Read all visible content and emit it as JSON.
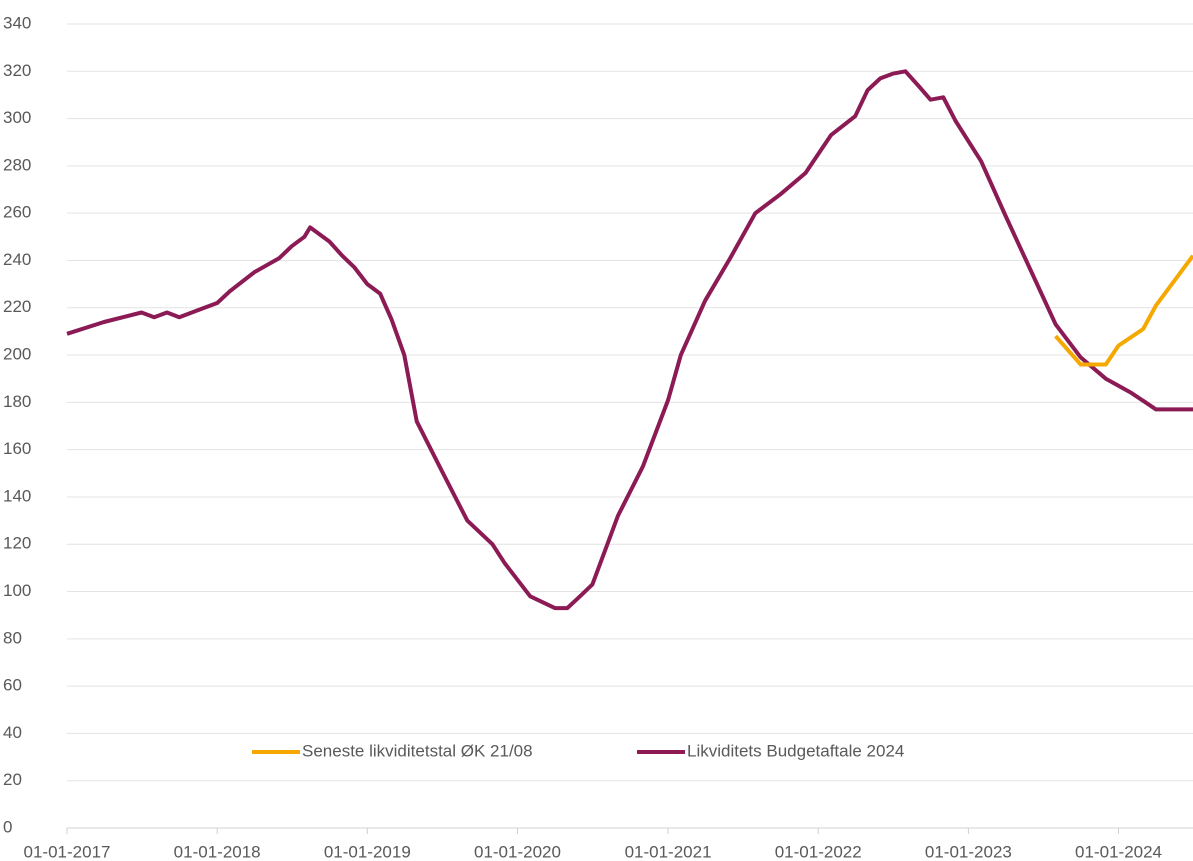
{
  "chart_data": {
    "type": "line",
    "ylim": [
      0,
      340
    ],
    "yticks": [
      0,
      20,
      40,
      60,
      80,
      100,
      120,
      140,
      160,
      180,
      200,
      220,
      240,
      260,
      280,
      300,
      320,
      340
    ],
    "xlim": [
      "2017-01-01",
      "2024-06-30"
    ],
    "xticks": [
      {
        "value": "2017-01-01",
        "label": "01-01-2017"
      },
      {
        "value": "2018-01-01",
        "label": "01-01-2018"
      },
      {
        "value": "2019-01-01",
        "label": "01-01-2019"
      },
      {
        "value": "2020-01-01",
        "label": "01-01-2020"
      },
      {
        "value": "2021-01-01",
        "label": "01-01-2021"
      },
      {
        "value": "2022-01-01",
        "label": "01-01-2022"
      },
      {
        "value": "2023-01-01",
        "label": "01-01-2023"
      },
      {
        "value": "2024-01-01",
        "label": "01-01-2024"
      }
    ],
    "grid": true,
    "legend": "bottom",
    "series": [
      {
        "name": "Seneste likviditetstal ØK 21/08",
        "color": "#f5a800",
        "x": [
          "2023-08-01",
          "2023-10-01",
          "2023-12-01",
          "2024-01-01",
          "2024-03-01",
          "2024-04-01",
          "2024-06-30"
        ],
        "values": [
          208,
          196,
          196,
          204,
          211,
          221,
          242
        ]
      },
      {
        "name": "Likviditets Budgetaftale 2024",
        "color": "#8b1a55",
        "x": [
          "2017-01-01",
          "2017-04-01",
          "2017-07-01",
          "2017-08-01",
          "2017-09-01",
          "2017-10-01",
          "2017-12-01",
          "2018-01-01",
          "2018-02-01",
          "2018-04-01",
          "2018-06-01",
          "2018-07-01",
          "2018-08-01",
          "2018-08-15",
          "2018-10-01",
          "2018-11-01",
          "2018-12-01",
          "2019-01-01",
          "2019-02-01",
          "2019-03-01",
          "2019-04-01",
          "2019-05-01",
          "2019-07-01",
          "2019-09-01",
          "2019-11-01",
          "2019-12-01",
          "2020-02-01",
          "2020-04-01",
          "2020-05-01",
          "2020-06-01",
          "2020-07-01",
          "2020-09-01",
          "2020-11-01",
          "2021-01-01",
          "2021-02-01",
          "2021-04-01",
          "2021-06-01",
          "2021-08-01",
          "2021-10-01",
          "2021-12-01",
          "2022-02-01",
          "2022-04-01",
          "2022-05-01",
          "2022-06-01",
          "2022-07-01",
          "2022-08-01",
          "2022-09-01",
          "2022-10-01",
          "2022-11-01",
          "2022-12-01",
          "2023-02-01",
          "2023-04-01",
          "2023-06-01",
          "2023-08-01",
          "2023-10-01",
          "2023-12-01",
          "2024-02-01",
          "2024-04-01",
          "2024-06-30"
        ],
        "values": [
          209,
          214,
          218,
          216,
          218,
          216,
          220,
          222,
          227,
          235,
          241,
          246,
          250,
          254,
          248,
          242,
          237,
          230,
          226,
          215,
          200,
          172,
          151,
          130,
          120,
          112,
          98,
          93,
          93,
          98,
          103,
          132,
          153,
          181,
          200,
          223,
          241,
          260,
          268,
          277,
          293,
          301,
          312,
          317,
          319,
          320,
          314,
          308,
          309,
          299,
          282,
          259,
          236,
          213,
          199,
          190,
          184,
          177,
          177
        ]
      }
    ]
  }
}
